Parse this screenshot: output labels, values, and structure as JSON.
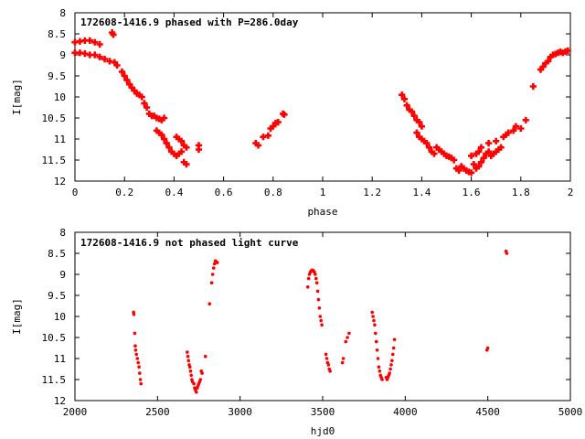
{
  "chart_data": [
    {
      "type": "scatter",
      "title": "172608-1416.9 phased with P=286.0day",
      "xlabel": "phase",
      "ylabel": "I[mag]",
      "xlim": [
        0,
        2
      ],
      "ylim": [
        8,
        12
      ],
      "y_inverted": true,
      "grid": false,
      "marker": "star",
      "color": "#ff0000",
      "x_ticks": [
        "0",
        "0.2",
        "0.4",
        "0.6",
        "0.8",
        "1",
        "1.2",
        "1.4",
        "1.6",
        "1.8",
        "2"
      ],
      "y_ticks": [
        "8",
        "8.5",
        "9",
        "9.5",
        "10",
        "10.5",
        "11",
        "11.5",
        "12"
      ],
      "points": [
        [
          0.0,
          8.7
        ],
        [
          0.02,
          8.68
        ],
        [
          0.04,
          8.66
        ],
        [
          0.06,
          8.66
        ],
        [
          0.08,
          8.7
        ],
        [
          0.1,
          8.75
        ],
        [
          0.0,
          8.95
        ],
        [
          0.02,
          8.95
        ],
        [
          0.04,
          8.97
        ],
        [
          0.06,
          9.0
        ],
        [
          0.08,
          9.0
        ],
        [
          0.1,
          9.05
        ],
        [
          0.12,
          9.1
        ],
        [
          0.14,
          9.15
        ],
        [
          0.16,
          9.18
        ],
        [
          0.17,
          9.25
        ],
        [
          0.15,
          8.47
        ],
        [
          0.155,
          8.52
        ],
        [
          0.19,
          9.4
        ],
        [
          0.2,
          9.5
        ],
        [
          0.21,
          9.6
        ],
        [
          0.22,
          9.7
        ],
        [
          0.23,
          9.78
        ],
        [
          0.24,
          9.85
        ],
        [
          0.25,
          9.92
        ],
        [
          0.26,
          9.95
        ],
        [
          0.27,
          10.0
        ],
        [
          0.28,
          10.15
        ],
        [
          0.29,
          10.25
        ],
        [
          0.3,
          10.4
        ],
        [
          0.31,
          10.45
        ],
        [
          0.32,
          10.45
        ],
        [
          0.33,
          10.5
        ],
        [
          0.34,
          10.52
        ],
        [
          0.35,
          10.55
        ],
        [
          0.36,
          10.5
        ],
        [
          0.33,
          10.8
        ],
        [
          0.34,
          10.85
        ],
        [
          0.35,
          10.9
        ],
        [
          0.36,
          11.0
        ],
        [
          0.37,
          11.1
        ],
        [
          0.38,
          11.2
        ],
        [
          0.39,
          11.3
        ],
        [
          0.4,
          11.35
        ],
        [
          0.41,
          11.4
        ],
        [
          0.42,
          11.35
        ],
        [
          0.43,
          11.3
        ],
        [
          0.41,
          10.95
        ],
        [
          0.42,
          11.0
        ],
        [
          0.43,
          11.05
        ],
        [
          0.44,
          11.15
        ],
        [
          0.45,
          11.2
        ],
        [
          0.44,
          11.55
        ],
        [
          0.45,
          11.6
        ],
        [
          0.5,
          11.15
        ],
        [
          0.5,
          11.25
        ],
        [
          0.73,
          11.1
        ],
        [
          0.74,
          11.15
        ],
        [
          0.76,
          10.95
        ],
        [
          0.78,
          10.92
        ],
        [
          0.79,
          10.75
        ],
        [
          0.8,
          10.7
        ],
        [
          0.81,
          10.62
        ],
        [
          0.82,
          10.6
        ],
        [
          0.84,
          10.4
        ],
        [
          0.845,
          10.42
        ],
        [
          1.32,
          9.95
        ],
        [
          1.33,
          10.05
        ],
        [
          1.34,
          10.2
        ],
        [
          1.35,
          10.3
        ],
        [
          1.36,
          10.35
        ],
        [
          1.37,
          10.45
        ],
        [
          1.38,
          10.55
        ],
        [
          1.39,
          10.6
        ],
        [
          1.4,
          10.7
        ],
        [
          1.38,
          10.85
        ],
        [
          1.39,
          10.95
        ],
        [
          1.4,
          11.0
        ],
        [
          1.41,
          11.05
        ],
        [
          1.42,
          11.1
        ],
        [
          1.43,
          11.2
        ],
        [
          1.44,
          11.3
        ],
        [
          1.45,
          11.35
        ],
        [
          1.46,
          11.2
        ],
        [
          1.47,
          11.25
        ],
        [
          1.48,
          11.3
        ],
        [
          1.49,
          11.35
        ],
        [
          1.5,
          11.4
        ],
        [
          1.51,
          11.42
        ],
        [
          1.52,
          11.45
        ],
        [
          1.53,
          11.5
        ],
        [
          1.54,
          11.7
        ],
        [
          1.55,
          11.75
        ],
        [
          1.56,
          11.65
        ],
        [
          1.57,
          11.7
        ],
        [
          1.58,
          11.75
        ],
        [
          1.59,
          11.78
        ],
        [
          1.6,
          11.8
        ],
        [
          1.61,
          11.6
        ],
        [
          1.62,
          11.7
        ],
        [
          1.63,
          11.65
        ],
        [
          1.64,
          11.55
        ],
        [
          1.65,
          11.45
        ],
        [
          1.6,
          11.4
        ],
        [
          1.62,
          11.35
        ],
        [
          1.63,
          11.3
        ],
        [
          1.64,
          11.2
        ],
        [
          1.66,
          11.35
        ],
        [
          1.67,
          11.3
        ],
        [
          1.68,
          11.4
        ],
        [
          1.69,
          11.35
        ],
        [
          1.7,
          11.3
        ],
        [
          1.71,
          11.25
        ],
        [
          1.72,
          11.2
        ],
        [
          1.67,
          11.1
        ],
        [
          1.7,
          11.05
        ],
        [
          1.73,
          10.95
        ],
        [
          1.74,
          10.9
        ],
        [
          1.75,
          10.85
        ],
        [
          1.77,
          10.8
        ],
        [
          1.78,
          10.7
        ],
        [
          1.8,
          10.75
        ],
        [
          1.82,
          10.55
        ],
        [
          1.85,
          9.75
        ],
        [
          1.88,
          9.35
        ],
        [
          1.89,
          9.28
        ],
        [
          1.9,
          9.2
        ],
        [
          1.91,
          9.15
        ],
        [
          1.92,
          9.05
        ],
        [
          1.93,
          9.0
        ],
        [
          1.94,
          8.98
        ],
        [
          1.95,
          8.95
        ],
        [
          1.96,
          8.93
        ],
        [
          1.97,
          8.95
        ],
        [
          1.98,
          8.92
        ],
        [
          1.99,
          8.9
        ]
      ]
    },
    {
      "type": "scatter",
      "title": "172608-1416.9 not phased light curve",
      "xlabel": "hjd0",
      "ylabel": "I[mag]",
      "xlim": [
        2000,
        5000
      ],
      "ylim": [
        8,
        12
      ],
      "y_inverted": true,
      "grid": false,
      "marker": "dot",
      "color": "#ff0000",
      "x_ticks": [
        "2000",
        "2500",
        "3000",
        "3500",
        "4000",
        "4500",
        "5000"
      ],
      "y_ticks": [
        "8",
        "8.5",
        "9",
        "9.5",
        "10",
        "10.5",
        "11",
        "11.5",
        "12"
      ],
      "points": [
        [
          2355,
          9.9
        ],
        [
          2357,
          9.95
        ],
        [
          2362,
          10.4
        ],
        [
          2365,
          10.7
        ],
        [
          2368,
          10.8
        ],
        [
          2372,
          10.9
        ],
        [
          2378,
          11.0
        ],
        [
          2383,
          11.1
        ],
        [
          2388,
          11.2
        ],
        [
          2392,
          11.35
        ],
        [
          2396,
          11.5
        ],
        [
          2400,
          11.6
        ],
        [
          2680,
          10.85
        ],
        [
          2684,
          10.95
        ],
        [
          2688,
          11.05
        ],
        [
          2692,
          11.15
        ],
        [
          2696,
          11.2
        ],
        [
          2700,
          11.3
        ],
        [
          2704,
          11.4
        ],
        [
          2708,
          11.5
        ],
        [
          2712,
          11.55
        ],
        [
          2720,
          11.6
        ],
        [
          2725,
          11.7
        ],
        [
          2730,
          11.75
        ],
        [
          2735,
          11.8
        ],
        [
          2740,
          11.7
        ],
        [
          2745,
          11.65
        ],
        [
          2750,
          11.6
        ],
        [
          2755,
          11.55
        ],
        [
          2760,
          11.5
        ],
        [
          2765,
          11.3
        ],
        [
          2770,
          11.35
        ],
        [
          2790,
          10.95
        ],
        [
          2815,
          9.7
        ],
        [
          2828,
          9.2
        ],
        [
          2834,
          9.0
        ],
        [
          2840,
          8.85
        ],
        [
          2845,
          8.75
        ],
        [
          2850,
          8.68
        ],
        [
          2856,
          8.7
        ],
        [
          2862,
          8.72
        ],
        [
          3410,
          9.3
        ],
        [
          3415,
          9.1
        ],
        [
          3420,
          9.0
        ],
        [
          3425,
          8.95
        ],
        [
          3430,
          8.92
        ],
        [
          3435,
          8.9
        ],
        [
          3440,
          8.9
        ],
        [
          3445,
          8.92
        ],
        [
          3450,
          8.95
        ],
        [
          3455,
          9.0
        ],
        [
          3460,
          9.1
        ],
        [
          3465,
          9.2
        ],
        [
          3470,
          9.4
        ],
        [
          3475,
          9.6
        ],
        [
          3480,
          9.8
        ],
        [
          3485,
          10.0
        ],
        [
          3490,
          10.1
        ],
        [
          3495,
          10.2
        ],
        [
          3520,
          10.9
        ],
        [
          3525,
          11.0
        ],
        [
          3530,
          11.1
        ],
        [
          3535,
          11.15
        ],
        [
          3540,
          11.25
        ],
        [
          3545,
          11.3
        ],
        [
          3620,
          11.1
        ],
        [
          3625,
          11.0
        ],
        [
          3640,
          10.6
        ],
        [
          3650,
          10.5
        ],
        [
          3660,
          10.4
        ],
        [
          3800,
          9.9
        ],
        [
          3805,
          10.0
        ],
        [
          3810,
          10.1
        ],
        [
          3815,
          10.2
        ],
        [
          3820,
          10.4
        ],
        [
          3825,
          10.6
        ],
        [
          3830,
          10.8
        ],
        [
          3835,
          11.0
        ],
        [
          3840,
          11.2
        ],
        [
          3845,
          11.3
        ],
        [
          3850,
          11.4
        ],
        [
          3855,
          11.45
        ],
        [
          3860,
          11.5
        ],
        [
          3885,
          11.45
        ],
        [
          3890,
          11.5
        ],
        [
          3895,
          11.45
        ],
        [
          3900,
          11.4
        ],
        [
          3905,
          11.35
        ],
        [
          3910,
          11.25
        ],
        [
          3915,
          11.15
        ],
        [
          3920,
          11.05
        ],
        [
          3925,
          10.9
        ],
        [
          3930,
          10.75
        ],
        [
          3935,
          10.55
        ],
        [
          4495,
          10.8
        ],
        [
          4500,
          10.75
        ],
        [
          4610,
          8.45
        ],
        [
          4615,
          8.5
        ]
      ]
    }
  ]
}
